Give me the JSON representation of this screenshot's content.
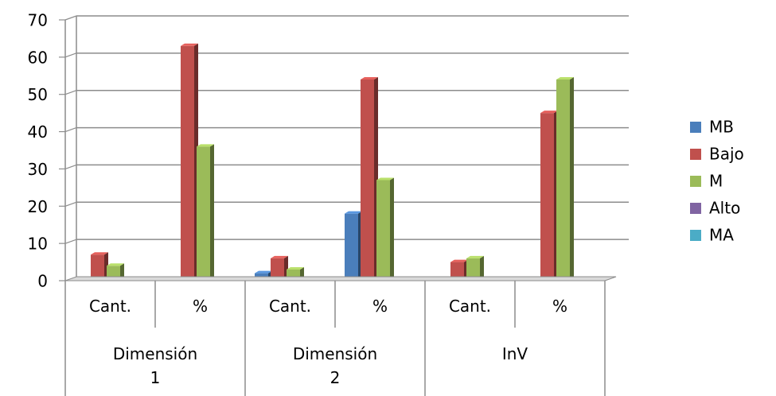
{
  "chart_data": {
    "type": "bar",
    "style": "3d-clustered-column",
    "ylim": [
      0,
      70
    ],
    "yticks": [
      "0",
      "10",
      "20",
      "30",
      "40",
      "50",
      "60",
      "70"
    ],
    "grid": "horizontal",
    "legend_position": "right",
    "categories": [
      {
        "label": "Cant.",
        "group": "Dimensión 1"
      },
      {
        "label": "%",
        "group": "Dimensión 1"
      },
      {
        "label": "Cant.",
        "group": "Dimensión 2"
      },
      {
        "label": "%",
        "group": "Dimensión 2"
      },
      {
        "label": "Cant.",
        "group": "InV"
      },
      {
        "label": "%",
        "group": "InV"
      }
    ],
    "groups": [
      {
        "label_line1": "Dimensión",
        "label_line2": "1"
      },
      {
        "label_line1": "Dimensión",
        "label_line2": "2"
      },
      {
        "label_line1": "InV",
        "label_line2": ""
      }
    ],
    "series": [
      {
        "name": "MB",
        "color": "#4a7ebb",
        "values": [
          0,
          0,
          2,
          18,
          0,
          0
        ]
      },
      {
        "name": "Bajo",
        "color": "#c0504d",
        "values": [
          7,
          63,
          6,
          54,
          5,
          45
        ]
      },
      {
        "name": "M",
        "color": "#9bbb59",
        "values": [
          4,
          36,
          3,
          27,
          6,
          54
        ]
      },
      {
        "name": "Alto",
        "color": "#8064a2",
        "values": [
          0,
          0,
          0,
          0,
          0,
          0
        ]
      },
      {
        "name": "MA",
        "color": "#4bacc6",
        "values": [
          0,
          0,
          0,
          0,
          0,
          0
        ]
      }
    ]
  }
}
